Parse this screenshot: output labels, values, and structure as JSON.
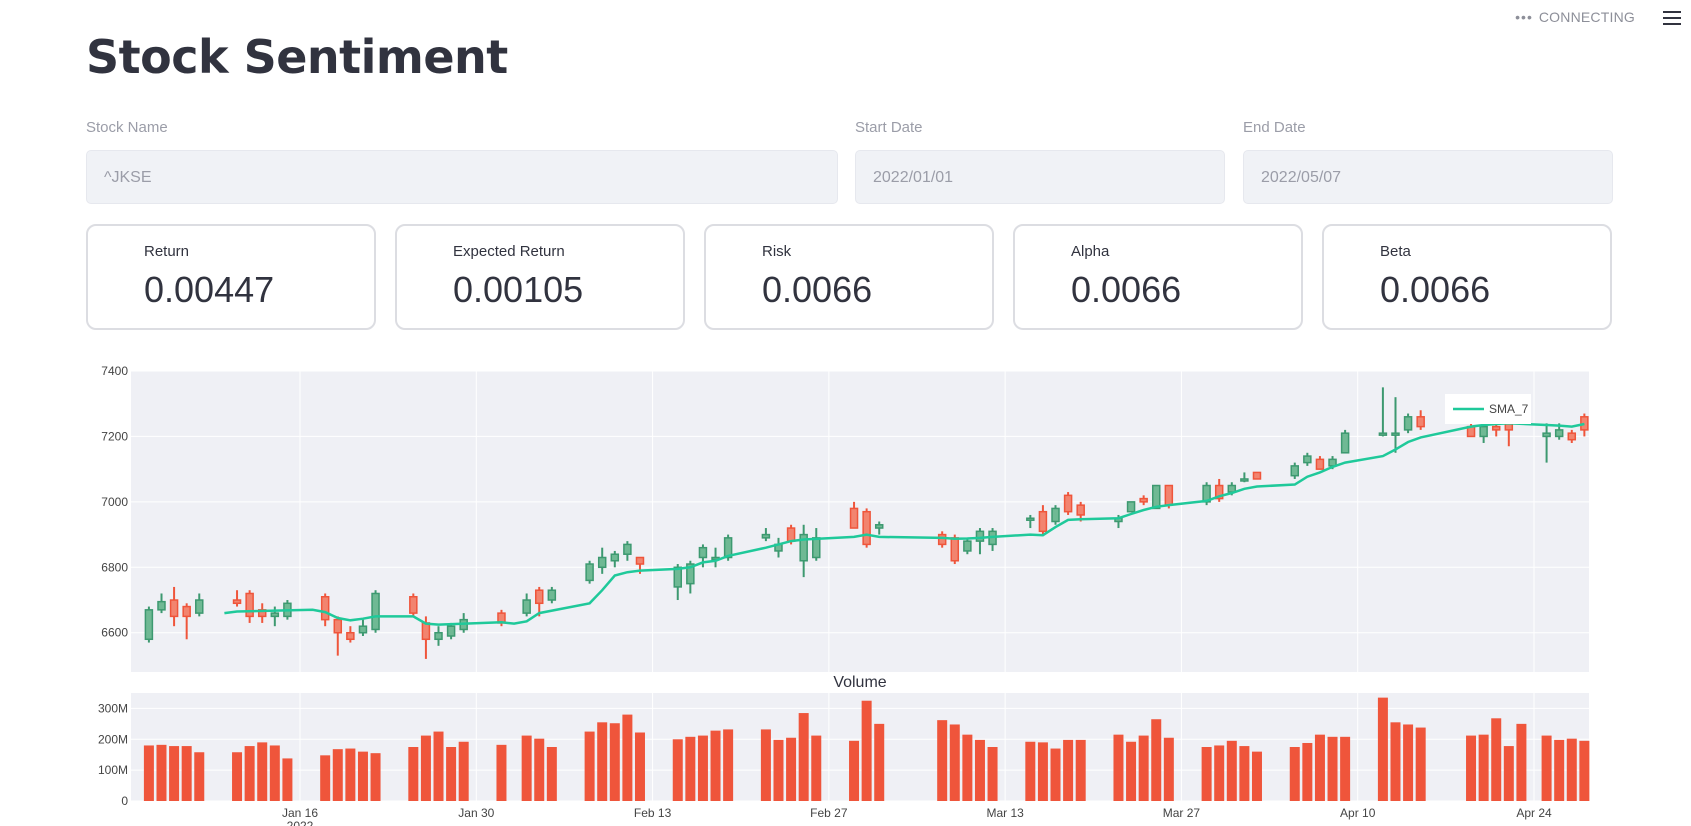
{
  "status": {
    "dots": "•••",
    "label": "CONNECTING"
  },
  "title": "Stock Sentiment",
  "inputs": {
    "stock_name": {
      "label": "Stock Name",
      "value": "^JKSE"
    },
    "start_date": {
      "label": "Start Date",
      "value": "2022/01/01"
    },
    "end_date": {
      "label": "End Date",
      "value": "2022/05/07"
    }
  },
  "metrics": [
    {
      "label": "Return",
      "value": "0.00447"
    },
    {
      "label": "Expected Return",
      "value": "0.00105"
    },
    {
      "label": "Risk",
      "value": "0.0066"
    },
    {
      "label": "Alpha",
      "value": "0.0066"
    },
    {
      "label": "Beta",
      "value": "0.0066"
    }
  ],
  "colors": {
    "increasing": "#3d9970",
    "decreasing": "#ef553b",
    "sma": "#1fc99a",
    "volume": "#ef553b",
    "plot_bg": "#eff0f5"
  },
  "chart_data": [
    {
      "type": "candlestick",
      "legend": [
        "SMA_7"
      ],
      "legend_position": "top-right",
      "grid": true,
      "ylim": [
        6480,
        7400
      ],
      "yticks": [
        6600,
        6800,
        7000,
        7200,
        7400
      ],
      "x_days": [
        2,
        59
      ],
      "candles": [
        [
          3,
          6580,
          6670,
          6570,
          6680
        ],
        [
          4,
          6670,
          6695,
          6660,
          6720
        ],
        [
          5,
          6700,
          6650,
          6620,
          6740
        ],
        [
          6,
          6680,
          6650,
          6580,
          6690
        ],
        [
          7,
          6660,
          6700,
          6650,
          6720
        ],
        [
          10,
          6700,
          6690,
          6680,
          6730
        ],
        [
          11,
          6720,
          6650,
          6630,
          6730
        ],
        [
          12,
          6670,
          6650,
          6630,
          6690
        ],
        [
          13,
          6650,
          6660,
          6620,
          6680
        ],
        [
          14,
          6650,
          6690,
          6640,
          6700
        ],
        [
          17,
          6710,
          6640,
          6620,
          6720
        ],
        [
          18,
          6640,
          6600,
          6530,
          6650
        ],
        [
          19,
          6600,
          6580,
          6570,
          6620
        ],
        [
          20,
          6600,
          6620,
          6590,
          6640
        ],
        [
          21,
          6610,
          6720,
          6600,
          6730
        ],
        [
          24,
          6710,
          6660,
          6650,
          6720
        ],
        [
          25,
          6630,
          6580,
          6520,
          6650
        ],
        [
          26,
          6580,
          6600,
          6560,
          6620
        ],
        [
          27,
          6590,
          6620,
          6580,
          6630
        ],
        [
          28,
          6610,
          6640,
          6600,
          6660
        ],
        [
          31,
          6660,
          6630,
          6620,
          6670
        ],
        [
          33,
          6660,
          6700,
          6650,
          6720
        ],
        [
          34,
          6730,
          6690,
          6650,
          6740
        ],
        [
          35,
          6700,
          6730,
          6690,
          6740
        ],
        [
          38,
          6760,
          6810,
          6750,
          6820
        ],
        [
          39,
          6800,
          6830,
          6780,
          6860
        ],
        [
          40,
          6820,
          6840,
          6800,
          6850
        ],
        [
          41,
          6840,
          6870,
          6820,
          6880
        ],
        [
          42,
          6830,
          6810,
          6780,
          6830
        ],
        [
          45,
          6740,
          6800,
          6700,
          6810
        ],
        [
          46,
          6750,
          6810,
          6720,
          6820
        ],
        [
          47,
          6830,
          6860,
          6800,
          6870
        ],
        [
          48,
          6830,
          6830,
          6800,
          6860
        ],
        [
          49,
          6830,
          6890,
          6820,
          6900
        ],
        [
          52,
          6890,
          6900,
          6880,
          6920
        ],
        [
          53,
          6850,
          6870,
          6830,
          6890
        ],
        [
          54,
          6920,
          6880,
          6870,
          6930
        ],
        [
          55,
          6820,
          6900,
          6770,
          6930
        ],
        [
          56,
          6830,
          6890,
          6820,
          6920
        ],
        [
          59,
          6980,
          6920,
          6920,
          7000
        ],
        [
          60,
          6970,
          6870,
          6860,
          6980
        ],
        [
          61,
          6920,
          6930,
          6900,
          6940
        ],
        [
          66,
          6900,
          6870,
          6860,
          6910
        ],
        [
          67,
          6890,
          6820,
          6810,
          6900
        ],
        [
          68,
          6850,
          6880,
          6840,
          6890
        ],
        [
          69,
          6880,
          6910,
          6840,
          6920
        ],
        [
          70,
          6870,
          6910,
          6850,
          6920
        ],
        [
          73,
          6950,
          6950,
          6920,
          6960
        ],
        [
          74,
          6970,
          6910,
          6900,
          6990
        ],
        [
          75,
          6940,
          6980,
          6930,
          6990
        ],
        [
          76,
          7020,
          6970,
          6960,
          7030
        ],
        [
          77,
          6990,
          6960,
          6940,
          7000
        ],
        [
          80,
          6940,
          6950,
          6920,
          6960
        ],
        [
          81,
          6970,
          7000,
          6970,
          7000
        ],
        [
          82,
          7010,
          7000,
          6990,
          7020
        ],
        [
          83,
          6980,
          7050,
          6980,
          7050
        ],
        [
          84,
          7050,
          6990,
          6980,
          7050
        ],
        [
          87,
          7000,
          7050,
          6990,
          7060
        ],
        [
          88,
          7050,
          7010,
          7000,
          7070
        ],
        [
          89,
          7030,
          7050,
          7020,
          7060
        ],
        [
          90,
          7070,
          7070,
          7060,
          7090
        ],
        [
          91,
          7090,
          7070,
          7070,
          7090
        ],
        [
          94,
          7080,
          7110,
          7070,
          7120
        ],
        [
          95,
          7120,
          7140,
          7110,
          7150
        ],
        [
          96,
          7130,
          7100,
          7100,
          7140
        ],
        [
          97,
          7110,
          7130,
          7100,
          7140
        ],
        [
          98,
          7150,
          7210,
          7150,
          7220
        ],
        [
          101,
          7210,
          7210,
          7200,
          7350
        ],
        [
          102,
          7210,
          7210,
          7150,
          7320
        ],
        [
          103,
          7220,
          7260,
          7210,
          7270
        ],
        [
          104,
          7260,
          7230,
          7220,
          7280
        ],
        [
          108,
          7230,
          7200,
          7200,
          7240
        ],
        [
          109,
          7200,
          7230,
          7180,
          7240
        ],
        [
          110,
          7230,
          7220,
          7200,
          7250
        ],
        [
          111,
          7240,
          7220,
          7170,
          7250
        ],
        [
          114,
          7200,
          7210,
          7120,
          7240
        ],
        [
          115,
          7200,
          7220,
          7190,
          7240
        ],
        [
          116,
          7210,
          7190,
          7180,
          7220
        ],
        [
          117,
          7260,
          7220,
          7200,
          7270
        ]
      ],
      "sma_7": [
        [
          9,
          6660
        ],
        [
          10,
          6665
        ],
        [
          16,
          6670
        ],
        [
          17,
          6663
        ],
        [
          18,
          6645
        ],
        [
          19,
          6638
        ],
        [
          20,
          6643
        ],
        [
          21,
          6650
        ],
        [
          24,
          6650
        ],
        [
          25,
          6628
        ],
        [
          26,
          6625
        ],
        [
          31,
          6632
        ],
        [
          32,
          6628
        ],
        [
          33,
          6635
        ],
        [
          34,
          6660
        ],
        [
          38,
          6690
        ],
        [
          39,
          6730
        ],
        [
          40,
          6775
        ],
        [
          41,
          6785
        ],
        [
          42,
          6790
        ],
        [
          45,
          6795
        ],
        [
          46,
          6800
        ],
        [
          47,
          6815
        ],
        [
          48,
          6820
        ],
        [
          49,
          6835
        ],
        [
          52,
          6860
        ],
        [
          53,
          6870
        ],
        [
          54,
          6880
        ],
        [
          55,
          6885
        ],
        [
          59,
          6893
        ],
        [
          60,
          6900
        ],
        [
          61,
          6893
        ],
        [
          66,
          6890
        ],
        [
          67,
          6887
        ],
        [
          68,
          6888
        ],
        [
          69,
          6890
        ],
        [
          70,
          6893
        ],
        [
          73,
          6900
        ],
        [
          74,
          6898
        ],
        [
          75,
          6923
        ],
        [
          76,
          6945
        ],
        [
          77,
          6947
        ],
        [
          80,
          6950
        ],
        [
          81,
          6963
        ],
        [
          82,
          6975
        ],
        [
          83,
          6985
        ],
        [
          84,
          6990
        ],
        [
          87,
          7003
        ],
        [
          88,
          7017
        ],
        [
          89,
          7027
        ],
        [
          90,
          7040
        ],
        [
          91,
          7047
        ],
        [
          94,
          7053
        ],
        [
          95,
          7077
        ],
        [
          96,
          7090
        ],
        [
          97,
          7107
        ],
        [
          98,
          7120
        ],
        [
          101,
          7140
        ],
        [
          102,
          7160
        ],
        [
          103,
          7183
        ],
        [
          104,
          7197
        ],
        [
          108,
          7230
        ],
        [
          109,
          7235
        ],
        [
          110,
          7238
        ],
        [
          111,
          7240
        ],
        [
          114,
          7235
        ],
        [
          115,
          7233
        ],
        [
          116,
          7230
        ],
        [
          117,
          7238
        ]
      ],
      "xticks": [
        {
          "day": 15,
          "label": "Jan 16"
        },
        {
          "day": 29,
          "label": "Jan 30"
        },
        {
          "day": 43,
          "label": "Feb 13"
        },
        {
          "day": 57,
          "label": "Feb 27"
        },
        {
          "day": 71,
          "label": "Mar 13"
        },
        {
          "day": 85,
          "label": "Mar 27"
        },
        {
          "day": 99,
          "label": "Apr 10"
        },
        {
          "day": 113,
          "label": "Apr 24"
        }
      ],
      "xtick_year": "2022"
    },
    {
      "type": "bar",
      "title": "Volume",
      "ylim": [
        0,
        350
      ],
      "yticks": [
        {
          "value": 0,
          "label": "0"
        },
        {
          "value": 100,
          "label": "100M"
        },
        {
          "value": 200,
          "label": "200M"
        },
        {
          "value": 300,
          "label": "300M"
        }
      ],
      "bars": [
        [
          3,
          180
        ],
        [
          4,
          182
        ],
        [
          5,
          178
        ],
        [
          6,
          178
        ],
        [
          7,
          158
        ],
        [
          10,
          158
        ],
        [
          11,
          178
        ],
        [
          12,
          190
        ],
        [
          13,
          180
        ],
        [
          14,
          138
        ],
        [
          17,
          148
        ],
        [
          18,
          168
        ],
        [
          19,
          170
        ],
        [
          20,
          160
        ],
        [
          21,
          155
        ],
        [
          24,
          175
        ],
        [
          25,
          212
        ],
        [
          26,
          225
        ],
        [
          27,
          175
        ],
        [
          28,
          192
        ],
        [
          31,
          182
        ],
        [
          33,
          212
        ],
        [
          34,
          202
        ],
        [
          35,
          175
        ],
        [
          38,
          225
        ],
        [
          39,
          255
        ],
        [
          40,
          252
        ],
        [
          41,
          280
        ],
        [
          42,
          222
        ],
        [
          45,
          200
        ],
        [
          46,
          208
        ],
        [
          47,
          212
        ],
        [
          48,
          228
        ],
        [
          49,
          232
        ],
        [
          52,
          232
        ],
        [
          53,
          198
        ],
        [
          54,
          205
        ],
        [
          55,
          285
        ],
        [
          56,
          212
        ],
        [
          59,
          195
        ],
        [
          60,
          325
        ],
        [
          61,
          250
        ],
        [
          66,
          262
        ],
        [
          67,
          248
        ],
        [
          68,
          215
        ],
        [
          69,
          198
        ],
        [
          70,
          175
        ],
        [
          73,
          192
        ],
        [
          74,
          190
        ],
        [
          75,
          170
        ],
        [
          76,
          198
        ],
        [
          77,
          198
        ],
        [
          80,
          215
        ],
        [
          81,
          192
        ],
        [
          82,
          212
        ],
        [
          83,
          265
        ],
        [
          84,
          205
        ],
        [
          87,
          175
        ],
        [
          88,
          180
        ],
        [
          89,
          195
        ],
        [
          90,
          178
        ],
        [
          91,
          160
        ],
        [
          94,
          175
        ],
        [
          95,
          188
        ],
        [
          96,
          215
        ],
        [
          97,
          208
        ],
        [
          98,
          208
        ],
        [
          101,
          335
        ],
        [
          102,
          255
        ],
        [
          103,
          248
        ],
        [
          104,
          238
        ],
        [
          108,
          212
        ],
        [
          109,
          215
        ],
        [
          110,
          268
        ],
        [
          111,
          178
        ],
        [
          112,
          250
        ],
        [
          114,
          212
        ],
        [
          115,
          198
        ],
        [
          116,
          202
        ],
        [
          117,
          195
        ]
      ]
    }
  ]
}
